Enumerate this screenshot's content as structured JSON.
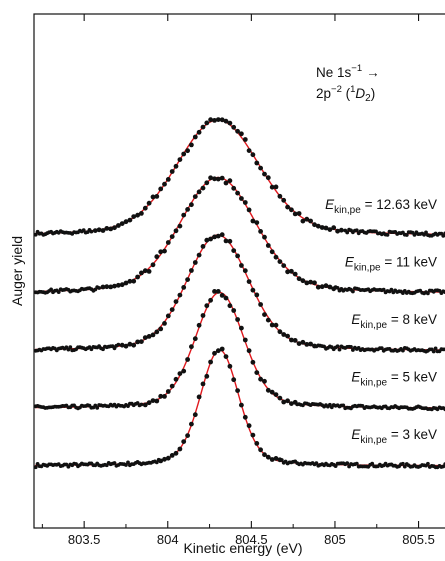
{
  "chart_data": {
    "type": "scatter",
    "xlabel": "Kinetic energy (eV)",
    "ylabel": "Auger yield",
    "xlim": [
      803.2,
      805.7
    ],
    "x_ticks": [
      "803.5",
      "804",
      "804.5",
      "805",
      "805.5"
    ],
    "x_tick_values": [
      803.5,
      804.0,
      804.5,
      805.0,
      805.5
    ],
    "y_ticks_labeled": false,
    "plot_style": "vertically offset spectra; black markers = data, red line = fit",
    "colors": {
      "data": "#111111",
      "fit": "#e0191e"
    },
    "annotation": {
      "line1": "Ne 1s",
      "line1_sup": "−1",
      "arrow": "→",
      "line2": "2p",
      "line2_sup": "−2",
      "line2_rest_open": " (",
      "line2_term_sup": "1",
      "line2_term": "D",
      "line2_term_sub": "2",
      "line2_rest_close": ")"
    },
    "series": [
      {
        "name": "E_kin,pe = 3 keV",
        "label_prefix": "E",
        "label_sub": "kin,pe",
        "label_value": " = 3 keV",
        "offset": 0.0,
        "peak_center": 804.31,
        "peak_fwhm": 0.26,
        "height": 1.0,
        "split": 0.0
      },
      {
        "name": "E_kin,pe = 5 keV",
        "label_prefix": "E",
        "label_sub": "kin,pe",
        "label_value": " = 5 keV",
        "offset": 1.0,
        "peak_center": 804.31,
        "peak_fwhm": 0.33,
        "height": 1.0,
        "split": 0.0
      },
      {
        "name": "E_kin,pe = 8 keV",
        "label_prefix": "E",
        "label_sub": "kin,pe",
        "label_value": " = 8 keV",
        "offset": 2.0,
        "peak_center": 804.3,
        "peak_fwhm": 0.42,
        "height": 1.0,
        "split": 0.03
      },
      {
        "name": "E_kin,pe = 11 keV",
        "label_prefix": "E",
        "label_sub": "kin,pe",
        "label_value": " = 11 keV",
        "offset": 3.0,
        "peak_center": 804.3,
        "peak_fwhm": 0.5,
        "height": 1.0,
        "split": 0.1
      },
      {
        "name": "E_kin,pe = 12.63 keV",
        "label_prefix": "E",
        "label_sub": "kin,pe",
        "label_value": " = 12.63 keV",
        "offset": 4.0,
        "peak_center": 804.3,
        "peak_fwhm": 0.54,
        "height": 1.0,
        "split": 0.13
      }
    ]
  }
}
